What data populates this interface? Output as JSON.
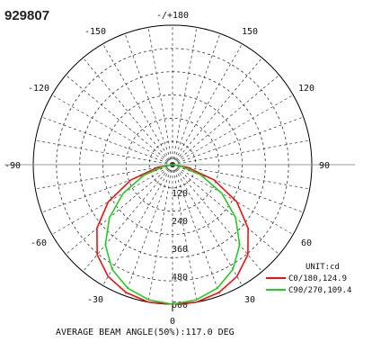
{
  "model_id": "929807",
  "chart_data": {
    "type": "polar-line",
    "angle_labels": [
      {
        "angle": 180,
        "text": "-/+180"
      },
      {
        "angle": -150,
        "text": "-150"
      },
      {
        "angle": 150,
        "text": "150"
      },
      {
        "angle": -120,
        "text": "-120"
      },
      {
        "angle": 120,
        "text": "120"
      },
      {
        "angle": -90,
        "text": "-90"
      },
      {
        "angle": 90,
        "text": "90"
      },
      {
        "angle": -60,
        "text": "-60"
      },
      {
        "angle": 60,
        "text": "60"
      },
      {
        "angle": -30,
        "text": "-30"
      },
      {
        "angle": 30,
        "text": "30"
      },
      {
        "angle": 0,
        "text": "0"
      }
    ],
    "radial_ticks": [
      120,
      240,
      360,
      480,
      600
    ],
    "radial_max": 600,
    "unit_label": "UNIT:cd",
    "series": [
      {
        "name": "C0/180,124.9",
        "color": "#ee1111",
        "angles": [
          0,
          10,
          20,
          30,
          40,
          50,
          60,
          70,
          80,
          90
        ],
        "values": [
          600,
          600,
          585,
          555,
          505,
          425,
          320,
          190,
          65,
          0
        ]
      },
      {
        "name": "C90/270,109.4",
        "color": "#22cc22",
        "angles": [
          0,
          10,
          20,
          30,
          40,
          50,
          60,
          70,
          80,
          90
        ],
        "values": [
          600,
          590,
          565,
          520,
          450,
          355,
          245,
          130,
          35,
          0
        ]
      }
    ],
    "footer": "AVERAGE BEAM ANGLE(50%):117.0 DEG"
  }
}
